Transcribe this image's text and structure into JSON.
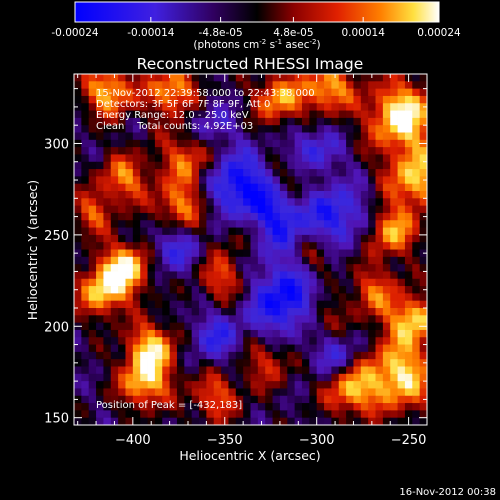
{
  "colorbar": {
    "tick_labels": [
      "-0.00024",
      "-0.00014",
      "-4.8e-05",
      "4.8e-05",
      "0.00014",
      "0.00024"
    ],
    "tick_values": [
      -0.00024,
      -0.00014,
      -4.8e-05,
      4.8e-05,
      0.00014,
      0.00024
    ],
    "range": [
      -0.00024,
      0.00024
    ],
    "units_label": "(photons cm",
    "units_exp1": "-2",
    "units_mid": " s",
    "units_exp2": "-1",
    "units_mid2": " asec",
    "units_exp3": "-2",
    "units_end": ")",
    "colors": [
      "#0000ff",
      "#4020e0",
      "#300060",
      "#000000",
      "#8a0000",
      "#e02000",
      "#ff8000",
      "#ffe040",
      "#ffffff"
    ]
  },
  "chart_data": {
    "type": "heatmap",
    "title": "Reconstructed RHESSI Image",
    "xlabel": "Heliocentric X (arcsec)",
    "ylabel": "Heliocentric Y (arcsec)",
    "xlim": [
      -432,
      -240
    ],
    "ylim": [
      146,
      338
    ],
    "x_ticks": [
      -400,
      -350,
      -300,
      -250
    ],
    "x_tick_labels": [
      "−400",
      "−350",
      "−300",
      "−250"
    ],
    "y_ticks": [
      150,
      200,
      250,
      300
    ],
    "y_tick_labels": [
      "150",
      "200",
      "250",
      "300"
    ],
    "annotations": [
      "15-Nov-2012 22:39:58.000 to 22:43:38.000",
      "Detectors: 3F 5F 6F 7F 8F 9F, Att 0",
      "Energy Range: 12.0 - 25.0 keV",
      "Clean    Total counts: 4.92E+03"
    ],
    "peak_label": "Position of Peak = [-432,183]",
    "peak": [
      -432,
      183
    ],
    "grid": false,
    "colormap": "blue-purple-black-red-yellow-white"
  },
  "footer": {
    "timestamp": "16-Nov-2012 00:38"
  }
}
